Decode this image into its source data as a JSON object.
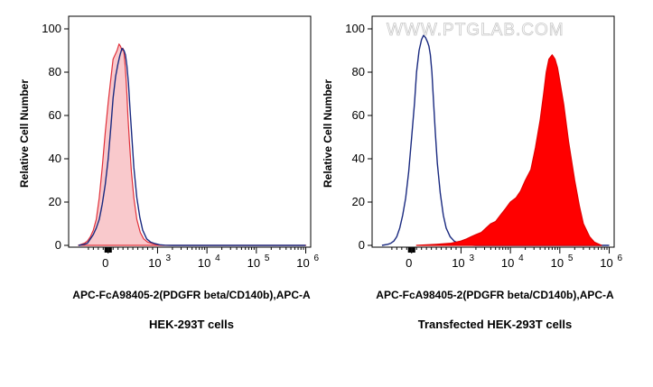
{
  "watermark": "WWW.PTGLAB.COM",
  "chart_data": [
    {
      "type": "area",
      "ylabel": "Relative Cell Number",
      "xlabel": "APC-FcA98405-2(PDGFR beta/CD140b),APC-A",
      "subtitle": "HEK-293T cells",
      "ylim": [
        0,
        100
      ],
      "yticks": [
        "0",
        "20",
        "40",
        "60",
        "80",
        "100"
      ],
      "xticks": [
        {
          "base": "0",
          "exp": ""
        },
        {
          "base": "10",
          "exp": "3"
        },
        {
          "base": "10",
          "exp": "4"
        },
        {
          "base": "10",
          "exp": "5"
        },
        {
          "base": "10",
          "exp": "6"
        }
      ],
      "series": [
        {
          "role": "filled",
          "color": "#f9c9cc",
          "stroke": "#e0303a",
          "x": [
            -600,
            -480,
            -420,
            -360,
            -300,
            -240,
            -180,
            -120,
            -60,
            0,
            60,
            100,
            140,
            180,
            220,
            250,
            280,
            300,
            320,
            340,
            360,
            380,
            400,
            430,
            470,
            520,
            580,
            650,
            720,
            800,
            900,
            1000,
            1400,
            2000,
            5000,
            1000000
          ],
          "y": [
            0,
            1,
            2,
            4,
            7,
            12,
            22,
            36,
            52,
            66,
            78,
            86,
            88,
            90,
            93,
            92,
            90,
            91,
            89,
            84,
            78,
            70,
            60,
            48,
            34,
            22,
            12,
            6,
            3,
            1.5,
            0.8,
            0.3,
            0.1,
            0,
            0,
            0
          ]
        },
        {
          "role": "outline",
          "color": "#1a2a80",
          "x": [
            -600,
            -480,
            -420,
            -360,
            -300,
            -240,
            -180,
            -120,
            -60,
            0,
            60,
            100,
            150,
            200,
            240,
            280,
            320,
            350,
            380,
            410,
            440,
            480,
            520,
            580,
            640,
            700,
            780,
            860,
            950,
            1100,
            1400,
            2000,
            5000,
            1000000
          ],
          "y": [
            0,
            0.5,
            1,
            3,
            5,
            8,
            12,
            19,
            28,
            40,
            56,
            68,
            78,
            84,
            88,
            91,
            90,
            88,
            83,
            75,
            64,
            50,
            36,
            22,
            13,
            7,
            3,
            1.5,
            0.8,
            0.3,
            0.1,
            0,
            0,
            0
          ]
        }
      ]
    },
    {
      "type": "area",
      "ylabel": "Relative Cell Number",
      "xlabel": "APC-FcA98405-2(PDGFR beta/CD140b),APC-A",
      "subtitle": "Transfected HEK-293T cells",
      "ylim": [
        0,
        100
      ],
      "yticks": [
        "0",
        "20",
        "40",
        "60",
        "80",
        "100"
      ],
      "xticks": [
        {
          "base": "0",
          "exp": ""
        },
        {
          "base": "10",
          "exp": "3"
        },
        {
          "base": "10",
          "exp": "4"
        },
        {
          "base": "10",
          "exp": "5"
        },
        {
          "base": "10",
          "exp": "6"
        }
      ],
      "series": [
        {
          "role": "outline",
          "color": "#1a2a80",
          "x": [
            -600,
            -480,
            -420,
            -360,
            -300,
            -240,
            -180,
            -120,
            -60,
            0,
            60,
            100,
            150,
            200,
            240,
            280,
            320,
            350,
            380,
            410,
            440,
            480,
            520,
            580,
            640,
            700,
            780,
            860,
            950,
            1100,
            1400,
            2000,
            5000,
            1000000
          ],
          "y": [
            0,
            0.5,
            1,
            2,
            4,
            8,
            14,
            22,
            34,
            50,
            66,
            80,
            90,
            95,
            97,
            96,
            94,
            92,
            88,
            80,
            68,
            52,
            38,
            24,
            14,
            8,
            4,
            2,
            1,
            0.5,
            0.2,
            0,
            0,
            0
          ]
        },
        {
          "role": "filled",
          "color": "#ff0000",
          "stroke": "#e00000",
          "x": [
            100,
            500,
            800,
            1000,
            1300,
            1600,
            2000,
            2600,
            3200,
            4000,
            5000,
            6300,
            8000,
            10000,
            13000,
            16000,
            20000,
            26000,
            32000,
            40000,
            47000,
            53000,
            60000,
            70000,
            80000,
            90000,
            100000,
            120000,
            150000,
            200000,
            250000,
            300000,
            400000,
            500000,
            700000
          ],
          "y": [
            0,
            0.5,
            1,
            2,
            3,
            4,
            5,
            6,
            8,
            10,
            11,
            14,
            17,
            20,
            22,
            25,
            30,
            35,
            45,
            58,
            70,
            80,
            86,
            88,
            86,
            82,
            76,
            65,
            48,
            30,
            18,
            10,
            4,
            1.5,
            0
          ]
        }
      ]
    }
  ]
}
